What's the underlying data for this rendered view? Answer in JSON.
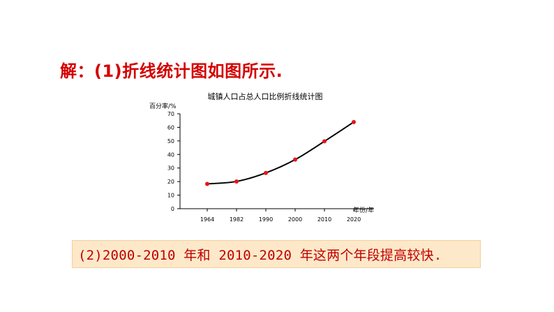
{
  "headline": "解：(1)折线统计图如图所示.",
  "answer": "(2)2000-2010 年和 2010-2020 年这两个年段提高较快.",
  "colors": {
    "headline": "#d40000",
    "answer_text": "#c00000",
    "answer_background": "#fde8c9",
    "line": "#000000",
    "point": "#e8141b"
  },
  "chart_data": {
    "type": "line",
    "title": "城镇人口占总人口比例折线统计图",
    "ylabel": "百分率/%",
    "xlabel": "年份/年",
    "categories": [
      "1964",
      "1982",
      "1990",
      "2000",
      "2010",
      "2020"
    ],
    "series": [
      {
        "values": [
          18.3,
          20.1,
          26.4,
          36.2,
          49.7,
          63.9
        ]
      }
    ],
    "ylim": [
      0,
      70
    ],
    "yticks": [
      0,
      10,
      20,
      30,
      40,
      50,
      60,
      70
    ],
    "grid": false,
    "smooth": true
  }
}
